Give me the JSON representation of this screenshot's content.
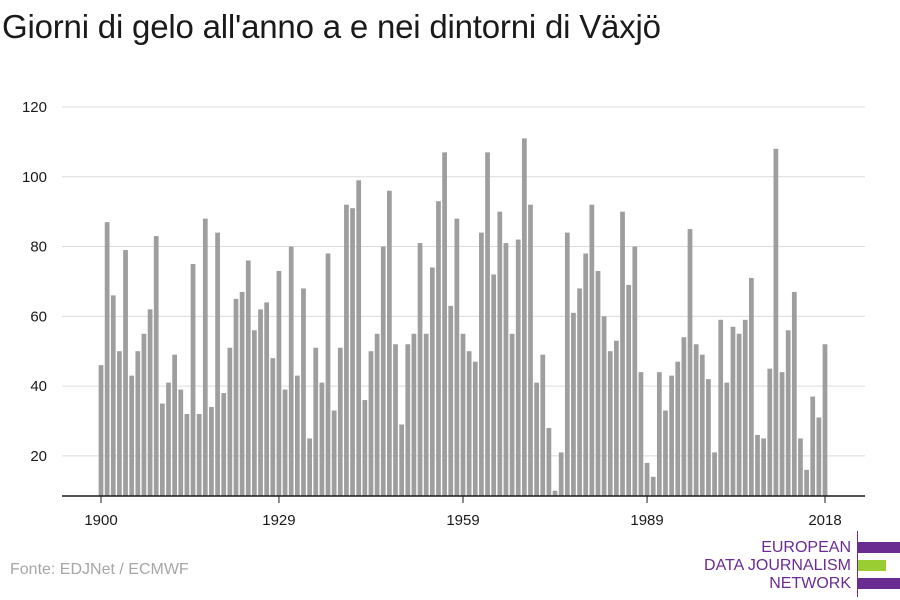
{
  "title": "Giorni di gelo all'anno a e nei dintorni di Växjö",
  "source": "Fonte: EDJNet / ECMWF",
  "logo": {
    "lines": [
      "EUROPEAN",
      "DATA JOURNALISM",
      "NETWORK"
    ],
    "colors": {
      "purple": "#6a2c91",
      "green": "#9acd32"
    }
  },
  "chart_data": {
    "type": "bar",
    "x_start": 1900,
    "x_end": 2018,
    "years": [
      1900,
      1901,
      1902,
      1903,
      1904,
      1905,
      1906,
      1907,
      1908,
      1909,
      1910,
      1911,
      1912,
      1913,
      1914,
      1915,
      1916,
      1917,
      1918,
      1919,
      1920,
      1921,
      1922,
      1923,
      1924,
      1925,
      1926,
      1927,
      1928,
      1929,
      1930,
      1931,
      1932,
      1933,
      1934,
      1935,
      1936,
      1937,
      1938,
      1939,
      1940,
      1941,
      1942,
      1943,
      1944,
      1945,
      1946,
      1947,
      1948,
      1949,
      1950,
      1951,
      1952,
      1953,
      1954,
      1955,
      1956,
      1957,
      1958,
      1959,
      1960,
      1961,
      1962,
      1963,
      1964,
      1965,
      1966,
      1967,
      1968,
      1969,
      1970,
      1971,
      1972,
      1973,
      1974,
      1975,
      1976,
      1977,
      1978,
      1979,
      1980,
      1981,
      1982,
      1983,
      1984,
      1985,
      1986,
      1987,
      1988,
      1989,
      1990,
      1991,
      1992,
      1993,
      1994,
      1995,
      1996,
      1997,
      1998,
      1999,
      2000,
      2001,
      2002,
      2003,
      2004,
      2005,
      2006,
      2007,
      2008,
      2009,
      2010,
      2011,
      2012,
      2013,
      2014,
      2015,
      2016,
      2017,
      2018
    ],
    "values": [
      46,
      87,
      66,
      50,
      79,
      43,
      50,
      55,
      62,
      83,
      35,
      41,
      49,
      39,
      32,
      75,
      32,
      88,
      34,
      84,
      38,
      51,
      65,
      67,
      76,
      56,
      62,
      64,
      48,
      73,
      39,
      80,
      43,
      68,
      25,
      51,
      41,
      78,
      33,
      51,
      92,
      91,
      99,
      36,
      50,
      55,
      80,
      96,
      52,
      29,
      52,
      55,
      81,
      55,
      74,
      93,
      107,
      63,
      88,
      55,
      50,
      47,
      84,
      107,
      72,
      90,
      81,
      55,
      82,
      111,
      92,
      41,
      49,
      28,
      10,
      21,
      84,
      61,
      68,
      78,
      92,
      73,
      60,
      50,
      53,
      90,
      69,
      80,
      44,
      18,
      14,
      44,
      33,
      43,
      47,
      54,
      85,
      52,
      49,
      42,
      21,
      59,
      41,
      57,
      55,
      59,
      71,
      26,
      25,
      45,
      108,
      44,
      56,
      67,
      25,
      16,
      37,
      31,
      52
    ],
    "x_ticks": [
      1900,
      1929,
      1959,
      1989,
      2018
    ],
    "y_ticks": [
      20,
      40,
      60,
      80,
      100,
      120
    ],
    "ylim": [
      8.5,
      120
    ],
    "bar_color": "#9e9e9e",
    "grid": true,
    "xlabel": "",
    "ylabel": ""
  }
}
